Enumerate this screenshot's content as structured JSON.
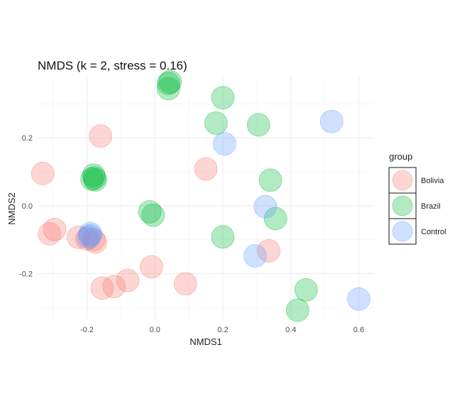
{
  "chart_data": {
    "type": "scatter",
    "title": "NMDS (k = 2, stress = 0.16)",
    "xlabel": "NMDS1",
    "ylabel": "NMDS2",
    "xlim": [
      -0.345,
      0.645
    ],
    "ylim": [
      -0.335,
      0.38
    ],
    "x_ticks": [
      -0.2,
      0.0,
      0.2,
      0.4,
      0.6
    ],
    "x_tick_labels": [
      "-0.2",
      "0.0",
      "0.2",
      "0.4",
      "0.6"
    ],
    "y_ticks": [
      -0.2,
      0.0,
      0.2
    ],
    "y_tick_labels": [
      "-0.2",
      "0.0",
      "0.2"
    ],
    "grid": true,
    "legend_position": "right",
    "legend_title": "group",
    "point_alpha": 0.3,
    "series": [
      {
        "name": "Bolivia",
        "color": "#F8766D",
        "points": [
          [
            -0.33,
            0.095
          ],
          [
            -0.16,
            0.205
          ],
          [
            0.15,
            0.108
          ],
          [
            -0.31,
            -0.083
          ],
          [
            -0.295,
            -0.07
          ],
          [
            -0.225,
            -0.093
          ],
          [
            -0.2,
            -0.098
          ],
          [
            -0.18,
            -0.1
          ],
          [
            -0.175,
            -0.107
          ],
          [
            -0.01,
            -0.18
          ],
          [
            -0.08,
            -0.22
          ],
          [
            -0.12,
            -0.238
          ],
          [
            -0.155,
            -0.243
          ],
          [
            0.09,
            -0.23
          ],
          [
            0.335,
            -0.133
          ]
        ]
      },
      {
        "name": "Brazil",
        "color": "#00BA38",
        "points": [
          [
            0.04,
            0.36
          ],
          [
            0.045,
            0.365
          ],
          [
            0.04,
            0.345
          ],
          [
            0.2,
            0.318
          ],
          [
            0.18,
            0.243
          ],
          [
            0.305,
            0.238
          ],
          [
            -0.18,
            0.09
          ],
          [
            -0.185,
            0.078
          ],
          [
            -0.175,
            0.076
          ],
          [
            -0.178,
            0.082
          ],
          [
            0.34,
            0.075
          ],
          [
            -0.015,
            -0.018
          ],
          [
            -0.005,
            -0.028
          ],
          [
            0.2,
            -0.092
          ],
          [
            0.355,
            -0.038
          ],
          [
            0.445,
            -0.248
          ],
          [
            0.42,
            -0.308
          ]
        ]
      },
      {
        "name": "Control",
        "color": "#619CFF",
        "points": [
          [
            0.52,
            0.248
          ],
          [
            0.205,
            0.182
          ],
          [
            0.325,
            -0.003
          ],
          [
            -0.19,
            -0.082
          ],
          [
            -0.19,
            -0.088
          ],
          [
            -0.195,
            -0.093
          ],
          [
            0.295,
            -0.148
          ],
          [
            0.6,
            -0.275
          ]
        ]
      }
    ]
  }
}
